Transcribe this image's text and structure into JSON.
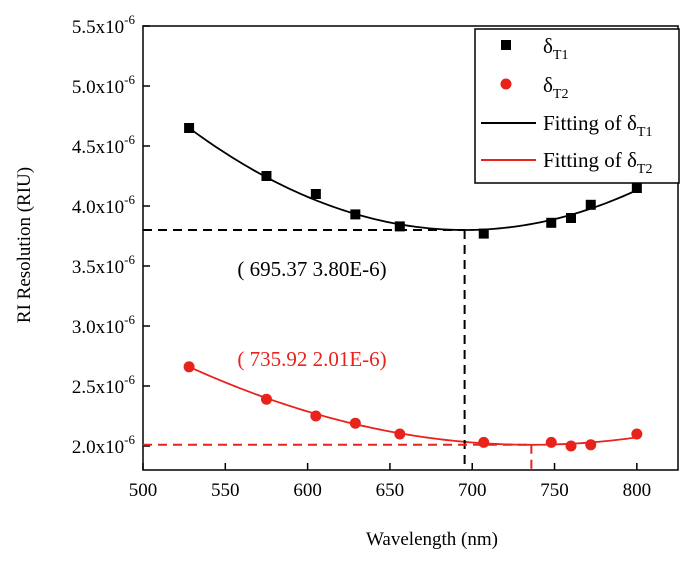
{
  "chart_data": {
    "type": "scatter",
    "xlabel": "Wavelength (nm)",
    "ylabel": "RI Resolution (RIU)",
    "xlim": [
      500,
      825
    ],
    "ylim": [
      1.8e-06,
      5.5e-06
    ],
    "xticks": [
      500,
      550,
      600,
      650,
      700,
      750,
      800
    ],
    "xtick_labels": [
      "500",
      "550",
      "600",
      "650",
      "700",
      "750",
      "800"
    ],
    "yticks": [
      2e-06,
      2.5e-06,
      3e-06,
      3.5e-06,
      4e-06,
      4.5e-06,
      5e-06,
      5.5e-06
    ],
    "ytick_labels": [
      {
        "mantissa": "2.0",
        "base": "x10",
        "exp": "-6"
      },
      {
        "mantissa": "2.5",
        "base": "x10",
        "exp": "-6"
      },
      {
        "mantissa": "3.0",
        "base": "x10",
        "exp": "-6"
      },
      {
        "mantissa": "3.5",
        "base": "x10",
        "exp": "-6"
      },
      {
        "mantissa": "4.0",
        "base": "x10",
        "exp": "-6"
      },
      {
        "mantissa": "4.5",
        "base": "x10",
        "exp": "-6"
      },
      {
        "mantissa": "5.0",
        "base": "x10",
        "exp": "-6"
      },
      {
        "mantissa": "5.5",
        "base": "x10",
        "exp": "-6"
      }
    ],
    "grid": false,
    "legend_position": "top-right",
    "series": [
      {
        "name_main": "δ",
        "name_sub": "T1",
        "marker": "square",
        "color": "#000000",
        "x": [
          528,
          575,
          605,
          629,
          656,
          707,
          748,
          760,
          772,
          800
        ],
        "y": [
          4.65e-06,
          4.25e-06,
          4.1e-06,
          3.93e-06,
          3.83e-06,
          3.77e-06,
          3.86e-06,
          3.9e-06,
          4.01e-06,
          4.15e-06
        ]
      },
      {
        "name_main": "δ",
        "name_sub": "T2",
        "marker": "circle",
        "color": "#e8231c",
        "x": [
          528,
          575,
          605,
          629,
          656,
          707,
          748,
          760,
          772,
          800
        ],
        "y": [
          2.66e-06,
          2.39e-06,
          2.25e-06,
          2.19e-06,
          2.1e-06,
          2.03e-06,
          2.03e-06,
          2e-06,
          2.01e-06,
          2.1e-06
        ]
      }
    ],
    "fits": [
      {
        "name_main": "Fitting of δ",
        "name_sub": "T1",
        "color": "#000000",
        "x_range": [
          528,
          800
        ],
        "vertex": [
          695.37,
          3.8e-06
        ],
        "through": [
          528,
          4.65e-06
        ]
      },
      {
        "name_main": "Fitting of δ",
        "name_sub": "T2",
        "color": "#e8231c",
        "x_range": [
          528,
          800
        ],
        "vertex": [
          735.92,
          2.01e-06
        ],
        "through": [
          528,
          2.66e-06
        ]
      }
    ],
    "annotations": [
      {
        "text": "( 695.37 3.80E-6)",
        "color": "#000000",
        "x": 695.37,
        "y": 3.8e-06
      },
      {
        "text": "( 735.92 2.01E-6)",
        "color": "#e8231c",
        "x": 735.92,
        "y": 2.01e-06
      }
    ]
  }
}
